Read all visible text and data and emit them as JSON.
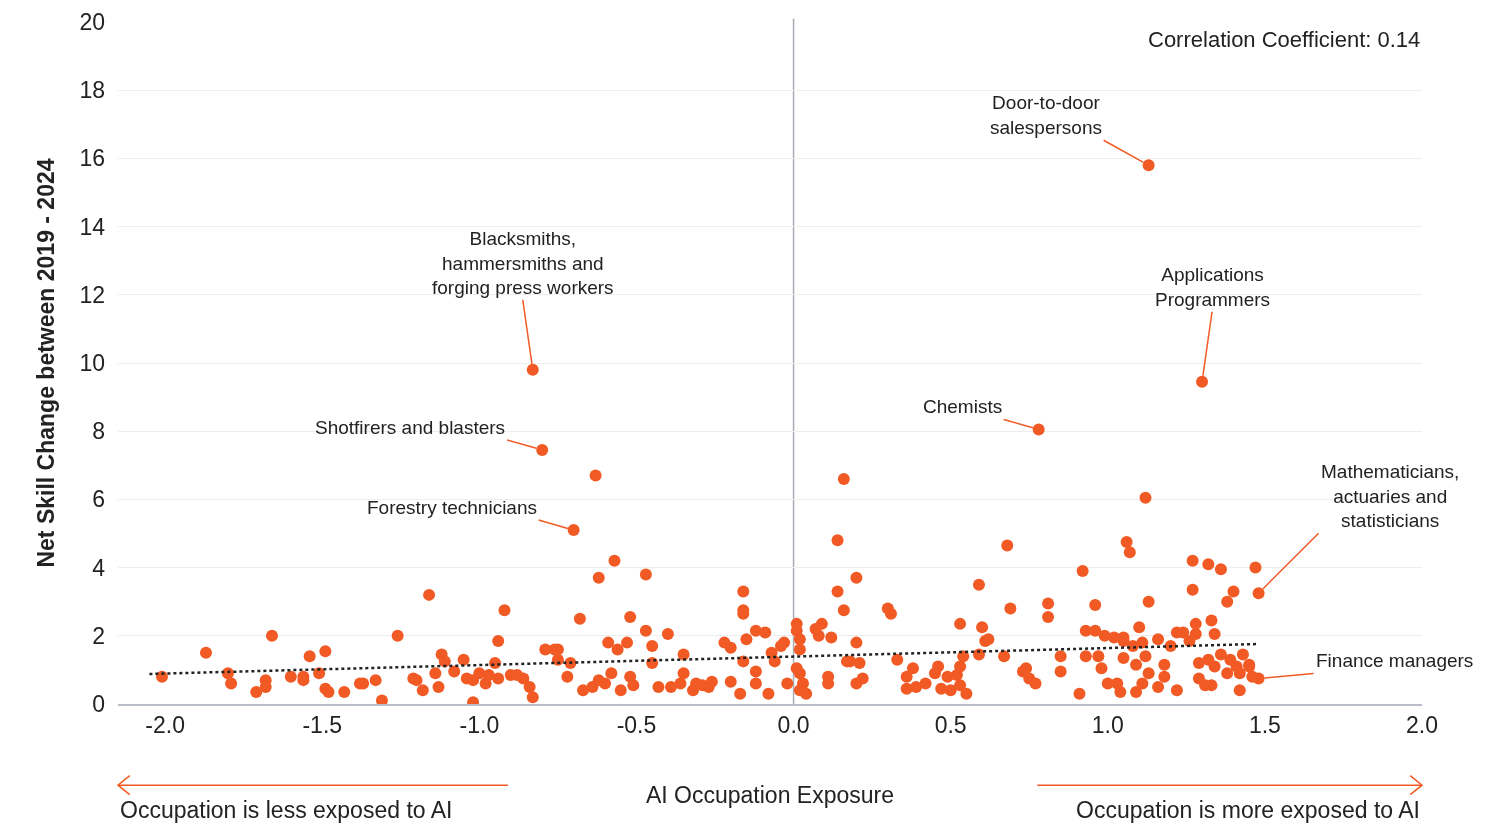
{
  "chart_data": {
    "type": "scatter",
    "xlabel": "AI Occupation Exposure",
    "ylabel": "Net Skill Change between 2019 - 2024",
    "xlim": [
      -2.15,
      2.0
    ],
    "xticks": [
      {
        "value": -2,
        "label": "-2.0"
      },
      {
        "value": -1.5,
        "label": "-1.5"
      },
      {
        "value": -1,
        "label": "-1.0"
      },
      {
        "value": -0.5,
        "label": "-0.5"
      },
      {
        "value": 0,
        "label": "0.0"
      },
      {
        "value": 0.5,
        "label": "0.5"
      },
      {
        "value": 1,
        "label": "1.0"
      },
      {
        "value": 1.5,
        "label": "1.5"
      },
      {
        "value": 2,
        "label": "2.0"
      }
    ],
    "ylim": [
      0,
      20
    ],
    "yticks": [
      0,
      2,
      4,
      6,
      8,
      10,
      12,
      14,
      16,
      18,
      20
    ],
    "grid": "y",
    "legend": false,
    "ref_lines": [
      {
        "axis": "x",
        "value": 0,
        "color": "#a9acb4"
      }
    ],
    "series": [
      {
        "color": "#f15a24",
        "marker": "circle",
        "x": [
          -2.01,
          -1.87,
          -1.8,
          -1.79,
          -1.71,
          -1.68,
          -1.68,
          -1.66,
          -1.6,
          -1.56,
          -1.56,
          -1.54,
          -1.51,
          -1.49,
          -1.49,
          -1.48,
          -1.43,
          -1.38,
          -1.37,
          -1.33,
          -1.31,
          -1.26,
          -1.21,
          -1.2,
          -1.18,
          -1.16,
          -1.14,
          -1.13,
          -1.12,
          -1.11,
          -1.08,
          -1.05,
          -1.04,
          -1.02,
          -1.02,
          -1.0,
          -0.98,
          -0.97,
          -0.95,
          -0.94,
          -0.92,
          -0.94,
          -0.9,
          -0.88,
          -0.86,
          -0.84,
          -0.83,
          -0.83,
          -0.8,
          -0.79,
          -0.76,
          -0.75,
          -0.75,
          -0.72,
          -0.71,
          -0.7,
          -0.68,
          -0.67,
          -0.64,
          -0.63,
          -0.62,
          -0.62,
          -0.6,
          -0.59,
          -0.58,
          -0.57,
          -0.56,
          -0.55,
          -0.53,
          -0.52,
          -0.52,
          -0.51,
          -0.47,
          -0.47,
          -0.45,
          -0.45,
          -0.43,
          -0.4,
          -0.39,
          -0.36,
          -0.35,
          -0.35,
          -0.32,
          -0.31,
          -0.29,
          -0.27,
          -0.26,
          -0.22,
          -0.2,
          -0.2,
          -0.17,
          -0.16,
          -0.16,
          -0.16,
          -0.15,
          -0.16,
          -0.12,
          -0.12,
          -0.09,
          -0.12,
          -0.08,
          -0.07,
          -0.06,
          -0.04,
          -0.03,
          -0.02,
          0.01,
          0.01,
          0.02,
          0.02,
          0.01,
          0.02,
          0.03,
          0.04,
          0.02,
          0.07,
          0.08,
          0.09,
          0.12,
          0.11,
          0.11,
          0.14,
          0.14,
          0.2,
          0.16,
          0.16,
          0.17,
          0.18,
          0.2,
          0.21,
          0.2,
          0.22,
          0.3,
          0.31,
          0.33,
          0.36,
          0.36,
          0.38,
          0.39,
          0.42,
          0.47,
          0.45,
          0.46,
          0.49,
          0.5,
          0.52,
          0.53,
          0.53,
          0.54,
          0.53,
          0.55,
          0.6,
          0.59,
          0.59,
          0.61,
          0.62,
          0.67,
          0.68,
          0.69,
          0.73,
          0.74,
          0.75,
          0.77,
          0.81,
          0.81,
          0.85,
          0.85,
          0.78,
          1.13,
          1.3,
          1.12,
          1.13,
          0.92,
          1.06,
          1.07,
          1.1,
          1.05,
          1.27,
          1.32,
          1.36,
          1.47,
          1.27,
          1.4,
          1.38,
          1.48,
          0.96,
          0.96,
          0.99,
          1.02,
          1.05,
          1.08,
          0.93,
          0.93,
          0.91,
          0.97,
          0.98,
          1.0,
          1.05,
          1.09,
          1.11,
          1.12,
          1.13,
          1.16,
          1.18,
          1.2,
          1.22,
          1.24,
          1.26,
          1.28,
          1.29,
          1.29,
          1.31,
          1.32,
          1.34,
          1.36,
          1.39,
          1.41,
          1.42,
          1.43,
          1.45,
          1.46,
          1.48,
          1.42,
          1.22,
          1.09,
          1.11,
          1.03,
          1.04,
          1.28,
          1.33,
          1.34,
          1.33,
          1.16,
          1.18,
          1.38,
          1.45
        ],
        "values": [
          0.8,
          1.5,
          0.9,
          0.6,
          0.35,
          0.7,
          0.5,
          2.0,
          0.8,
          0.7,
          0.8,
          1.4,
          0.9,
          1.55,
          0.45,
          0.35,
          0.35,
          0.6,
          0.6,
          0.7,
          0.1,
          2.0,
          0.75,
          0.7,
          0.4,
          3.2,
          0.9,
          0.5,
          1.45,
          1.25,
          0.95,
          1.3,
          0.75,
          0.05,
          0.7,
          0.9,
          0.6,
          0.85,
          1.2,
          1.85,
          2.75,
          0.75,
          0.85,
          0.85,
          0.75,
          0.5,
          0.2,
          9.8,
          7.45,
          1.6,
          1.6,
          1.6,
          1.3,
          0.8,
          1.2,
          5.1,
          2.5,
          0.4,
          0.5,
          6.7,
          3.7,
          0.7,
          0.6,
          1.8,
          0.9,
          4.2,
          1.6,
          0.4,
          1.8,
          2.55,
          0.8,
          0.55,
          3.8,
          2.15,
          1.7,
          1.2,
          0.5,
          2.05,
          0.5,
          0.6,
          1.45,
          0.9,
          0.4,
          0.6,
          0.55,
          0.5,
          0.65,
          1.8,
          1.65,
          0.65,
          0.3,
          3.3,
          2.75,
          2.65,
          1.9,
          1.25,
          0.95,
          2.15,
          2.1,
          0.6,
          0.3,
          1.5,
          1.25,
          1.7,
          1.8,
          0.6,
          2.35,
          2.15,
          1.9,
          1.6,
          1.05,
          0.9,
          0.6,
          0.3,
          0.4,
          2.2,
          2.0,
          2.35,
          1.95,
          0.8,
          0.6,
          4.8,
          3.3,
          3.7,
          2.75,
          6.6,
          1.25,
          1.25,
          1.8,
          1.2,
          0.6,
          0.75,
          2.8,
          2.65,
          1.3,
          0.8,
          0.45,
          1.05,
          0.5,
          0.6,
          0.45,
          0.9,
          1.1,
          0.8,
          0.4,
          0.85,
          0.55,
          1.1,
          1.4,
          2.35,
          0.3,
          2.25,
          3.5,
          1.45,
          1.85,
          1.9,
          1.4,
          4.65,
          2.8,
          0.95,
          1.05,
          0.75,
          0.6,
          2.55,
          2.95,
          1.4,
          0.95,
          8.05,
          15.8,
          9.45,
          6.05,
          3.0,
          3.9,
          4.75,
          4.45,
          2.25,
          1.85,
          4.2,
          4.1,
          3.95,
          4.0,
          3.35,
          3.3,
          3.0,
          3.25,
          2.9,
          2.15,
          2.0,
          1.95,
          1.95,
          1.7,
          2.15,
          1.4,
          0.3,
          1.4,
          1.05,
          0.6,
          1.35,
          1.15,
          1.8,
          1.4,
          0.9,
          0.5,
          1.15,
          1.7,
          2.1,
          2.1,
          1.85,
          2.05,
          1.2,
          0.75,
          0.55,
          1.3,
          1.1,
          1.45,
          1.3,
          1.1,
          0.9,
          1.45,
          1.15,
          0.8,
          0.75,
          0.4,
          0.4,
          0.35,
          0.6,
          0.6,
          0.35,
          2.35,
          2.45,
          2.05,
          0.55,
          1.9,
          0.8,
          0.9,
          1.1
        ]
      },
      {
        "type": "line",
        "color": "#222222",
        "line_style": "dotted",
        "marker": "none",
        "x": [
          -2.05,
          1.48
        ],
        "values": [
          0.88,
          1.76
        ]
      }
    ],
    "annotations": [
      {
        "text": "Door-to-door\nsalespersons",
        "x": 1.13,
        "y": 15.8
      },
      {
        "text": "Blacksmiths,\nhammersmiths and\nforging press workers",
        "x": -0.83,
        "y": 9.8
      },
      {
        "text": "Applications\nProgrammers",
        "x": 1.3,
        "y": 9.45
      },
      {
        "text": "Chemists",
        "x": 0.78,
        "y": 8.05
      },
      {
        "text": "Shotfirers and blasters",
        "x": -0.8,
        "y": 7.45
      },
      {
        "text": "Forestry technicians",
        "x": -0.7,
        "y": 5.1
      },
      {
        "text": "Mathematicians,\nactuaries and\nstatisticians",
        "x": 1.48,
        "y": 3.25
      },
      {
        "text": "Finance managers",
        "x": 1.48,
        "y": 0.75
      },
      "Correlation Coefficient: 0.14",
      "Occupation is less exposed to AI",
      "Occupation is more exposed to AI"
    ]
  }
}
